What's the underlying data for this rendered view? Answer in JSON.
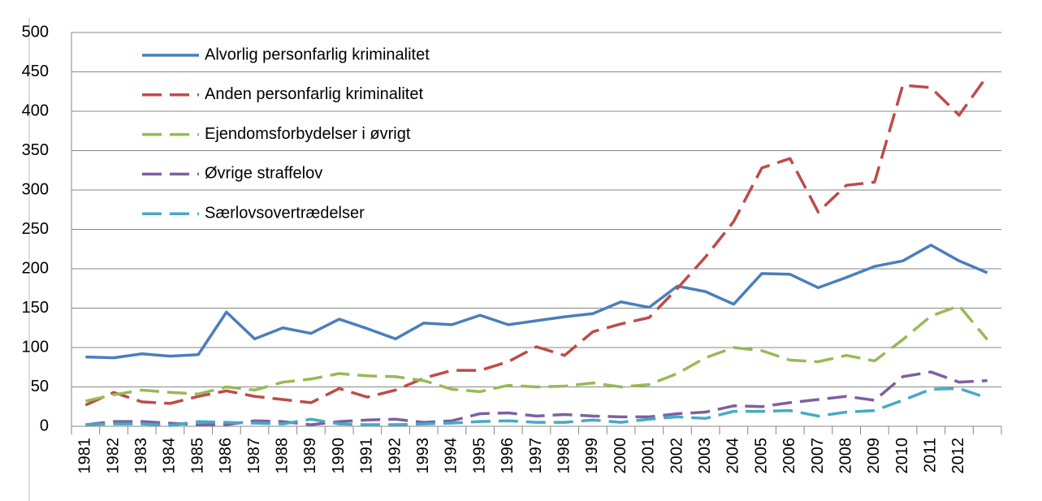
{
  "chart_data": {
    "type": "line",
    "categories": [
      "1981",
      "1982",
      "1983",
      "1984",
      "1985",
      "1986",
      "1987",
      "1988",
      "1989",
      "1990",
      "1991",
      "1992",
      "1993",
      "1994",
      "1995",
      "1996",
      "1997",
      "1998",
      "1999",
      "2000",
      "2001",
      "2002",
      "2003",
      "2004",
      "2005",
      "2006",
      "2007",
      "2008",
      "2009",
      "2010",
      "2011",
      "2012",
      null
    ],
    "series": [
      {
        "name": "Alvorlig personfarlig kriminalitet",
        "color": "#4a7ebb",
        "dashed": false,
        "values": [
          88,
          87,
          92,
          89,
          91,
          145,
          111,
          125,
          118,
          136,
          124,
          111,
          131,
          129,
          141,
          129,
          134,
          139,
          143,
          158,
          151,
          178,
          171,
          155,
          194,
          193,
          176,
          189,
          203,
          210,
          230,
          210,
          195
        ]
      },
      {
        "name": "Anden personfarlig kriminalitet",
        "color": "#be4b48",
        "dashed": true,
        "values": [
          27,
          43,
          31,
          29,
          38,
          45,
          38,
          34,
          30,
          48,
          37,
          46,
          61,
          71,
          71,
          82,
          101,
          90,
          120,
          130,
          138,
          175,
          215,
          260,
          328,
          340,
          272,
          306,
          310,
          433,
          430,
          395,
          445
        ]
      },
      {
        "name": "Ejendomsforbydelser i øvrigt",
        "color": "#98b954",
        "dashed": true,
        "values": [
          32,
          40,
          46,
          43,
          41,
          50,
          46,
          56,
          60,
          67,
          64,
          63,
          58,
          47,
          44,
          52,
          50,
          51,
          55,
          50,
          53,
          67,
          87,
          100,
          96,
          84,
          82,
          90,
          83,
          110,
          140,
          153,
          110
        ]
      },
      {
        "name": "Øvrige straffelov",
        "color": "#7d60a0",
        "dashed": true,
        "values": [
          2,
          6,
          6,
          4,
          2,
          2,
          7,
          6,
          2,
          6,
          8,
          9,
          5,
          7,
          16,
          17,
          13,
          15,
          13,
          12,
          12,
          16,
          18,
          26,
          25,
          30,
          34,
          38,
          33,
          63,
          69,
          56,
          58
        ]
      },
      {
        "name": "Særlovsovertrædelser",
        "color": "#46aac5",
        "dashed": true,
        "values": [
          2,
          3,
          3,
          1,
          6,
          5,
          4,
          3,
          9,
          3,
          2,
          2,
          3,
          4,
          6,
          7,
          5,
          5,
          8,
          5,
          9,
          12,
          10,
          19,
          19,
          20,
          13,
          18,
          20,
          33,
          47,
          48,
          36
        ]
      }
    ],
    "ylim": [
      0,
      500
    ],
    "yticks": [
      0,
      50,
      100,
      150,
      200,
      250,
      300,
      350,
      400,
      450,
      500
    ],
    "grid": true,
    "legend": "upper left"
  }
}
